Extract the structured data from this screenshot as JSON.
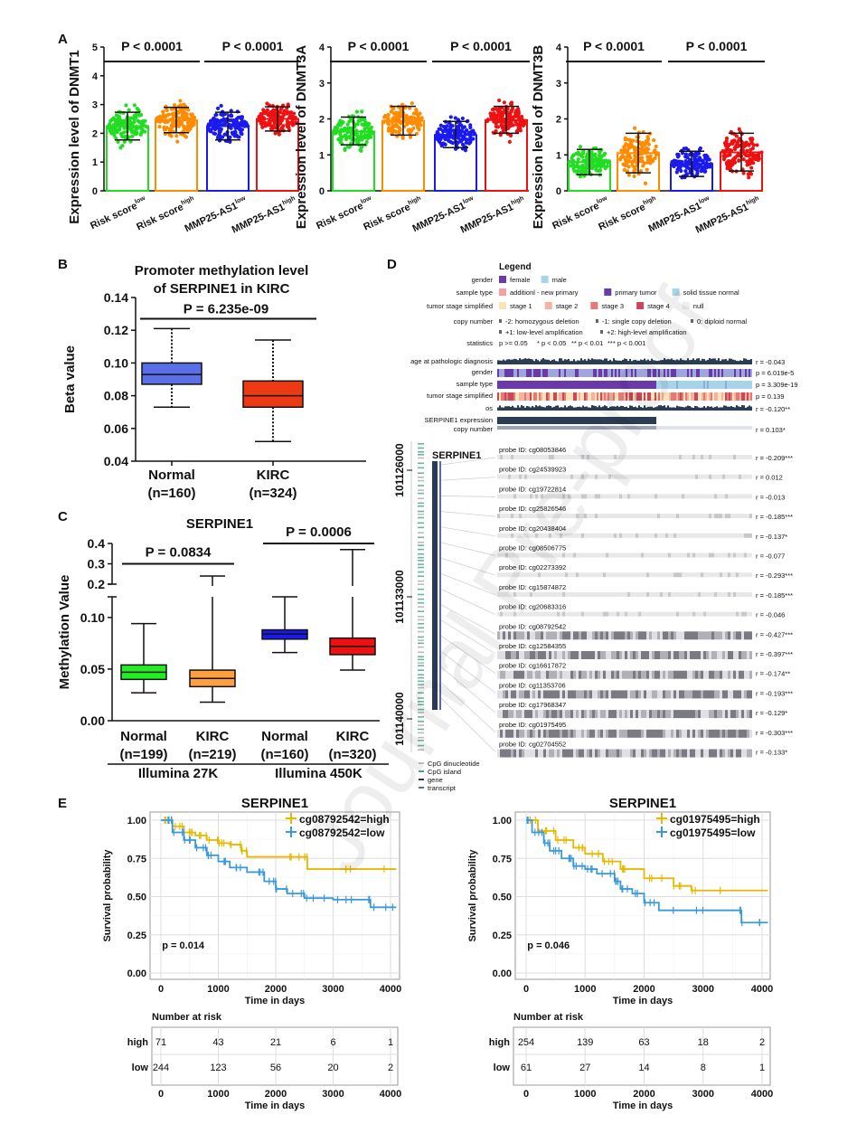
{
  "watermark": "Journal Pre-proof",
  "panel_labels": {
    "a": "A",
    "b": "B",
    "c": "C",
    "d": "D",
    "e": "E"
  },
  "chart_data": [
    {
      "panel": "A",
      "type": "bar",
      "ylabel": "Expression level of DNMT1",
      "ylim": [
        0,
        5
      ],
      "yticks": [
        "0",
        "1",
        "2",
        "3",
        "4",
        "5"
      ],
      "categories": [
        "Risk score",
        "Risk score",
        "MMP25-AS1",
        "MMP25-AS1"
      ],
      "category_superscripts": [
        "low",
        "high",
        "low",
        "high"
      ],
      "values": [
        2.25,
        2.45,
        2.25,
        2.5
      ],
      "error": [
        [
          1.77,
          2.73
        ],
        [
          2.02,
          2.9
        ],
        [
          1.77,
          2.73
        ],
        [
          2.08,
          2.92
        ]
      ],
      "colors": [
        "#22dd22",
        "#ff8c00",
        "#1a1aee",
        "#ee1111"
      ],
      "comparisons": [
        {
          "label": "P < 0.0001",
          "from": 0,
          "to": 1
        },
        {
          "label": "P < 0.0001",
          "from": 2,
          "to": 3
        }
      ]
    },
    {
      "panel": "A",
      "type": "bar",
      "ylabel": "Expression level of DNMT3A",
      "ylim": [
        0,
        4
      ],
      "yticks": [
        "0",
        "1",
        "2",
        "3",
        "4"
      ],
      "categories": [
        "Risk score",
        "Risk score",
        "MMP25-AS1",
        "MMP25-AS1"
      ],
      "category_superscripts": [
        "low",
        "high",
        "low",
        "high"
      ],
      "values": [
        1.65,
        1.95,
        1.55,
        1.97
      ],
      "error": [
        [
          1.28,
          2.05
        ],
        [
          1.55,
          2.35
        ],
        [
          1.2,
          1.93
        ],
        [
          1.6,
          2.35
        ]
      ],
      "colors": [
        "#22dd22",
        "#ff8c00",
        "#1a1aee",
        "#ee1111"
      ],
      "comparisons": [
        {
          "label": "P < 0.0001",
          "from": 0,
          "to": 1
        },
        {
          "label": "P < 0.0001",
          "from": 2,
          "to": 3
        }
      ]
    },
    {
      "panel": "A",
      "type": "bar",
      "ylabel": "Expression level of DNMT3B",
      "ylim": [
        0,
        4
      ],
      "yticks": [
        "0",
        "1",
        "2",
        "3",
        "4"
      ],
      "categories": [
        "Risk score",
        "Risk score",
        "MMP25-AS1",
        "MMP25-AS1"
      ],
      "category_superscripts": [
        "low",
        "high",
        "low",
        "high"
      ],
      "values": [
        0.8,
        1.05,
        0.75,
        1.07
      ],
      "error": [
        [
          0.45,
          1.15
        ],
        [
          0.5,
          1.6
        ],
        [
          0.4,
          1.1
        ],
        [
          0.55,
          1.6
        ]
      ],
      "colors": [
        "#22dd22",
        "#ff8c00",
        "#1a1aee",
        "#ee1111"
      ],
      "comparisons": [
        {
          "label": "P < 0.0001",
          "from": 0,
          "to": 1
        },
        {
          "label": "P < 0.0001",
          "from": 2,
          "to": 3
        }
      ]
    },
    {
      "panel": "B",
      "type": "box",
      "title": [
        "Promoter methylation level",
        "of SERPINE1 in KIRC"
      ],
      "ylabel": "Beta value",
      "ylim": [
        0.04,
        0.14
      ],
      "yticks": [
        "0.04",
        "0.06",
        "0.08",
        "0.10",
        "0.12",
        "0.14"
      ],
      "categories": [
        "Normal",
        "KIRC"
      ],
      "category_n": [
        "(n=160)",
        "(n=324)"
      ],
      "boxes": [
        {
          "min": 0.073,
          "q1": 0.087,
          "median": 0.093,
          "q3": 0.1,
          "max": 0.121
        },
        {
          "min": 0.052,
          "q1": 0.073,
          "median": 0.08,
          "q3": 0.089,
          "max": 0.114
        }
      ],
      "colors": [
        "#5b6fe6",
        "#ee3a14"
      ],
      "comparison": {
        "label": "P = 6.235e-09",
        "y": 0.127
      }
    },
    {
      "panel": "C",
      "type": "box",
      "title": "SERPINE1",
      "ylabel": "Methylation Value",
      "ylim_lower": [
        0,
        0.12
      ],
      "yticks_lower": [
        "0.00",
        "0.05",
        "0.10"
      ],
      "ylim_upper": [
        0.2,
        0.4
      ],
      "yticks_upper": [
        "0.2",
        "0.3",
        "0.4"
      ],
      "categories": [
        "Normal",
        "KIRC",
        "Normal",
        "KIRC"
      ],
      "category_n": [
        "(n=199)",
        "(n=219)",
        "(n=160)",
        "(n=320)"
      ],
      "groups": [
        {
          "label": "Illumina 27K",
          "from": 0,
          "to": 1
        },
        {
          "label": "Illumina 450K",
          "from": 2,
          "to": 3
        }
      ],
      "boxes": [
        {
          "min": 0.027,
          "q1": 0.04,
          "median": 0.047,
          "q3": 0.054,
          "max": 0.094
        },
        {
          "min": 0.018,
          "q1": 0.033,
          "median": 0.041,
          "q3": 0.049,
          "max": 0.24
        },
        {
          "min": 0.066,
          "q1": 0.079,
          "median": 0.084,
          "q3": 0.088,
          "max": 0.12
        },
        {
          "min": 0.049,
          "q1": 0.064,
          "median": 0.072,
          "q3": 0.08,
          "max": 0.37
        }
      ],
      "colors": [
        "#22ee22",
        "#ffa040",
        "#1a1aee",
        "#ee1111"
      ],
      "comparisons": [
        {
          "label": "P = 0.0834",
          "from": 0,
          "to": 1,
          "y": 0.3
        },
        {
          "label": "P = 0.0006",
          "from": 2,
          "to": 3,
          "y": 0.4
        }
      ]
    },
    {
      "panel": "E",
      "type": "line",
      "title": "SERPINE1",
      "xlabel": "Time in days",
      "ylabel": "Survival probability",
      "xlim": [
        0,
        4000
      ],
      "xticks": [
        "0",
        "1000",
        "2000",
        "3000",
        "4000"
      ],
      "ylim": [
        0,
        1
      ],
      "yticks": [
        "0.00",
        "0.25",
        "0.50",
        "0.75",
        "1.00"
      ],
      "grid": true,
      "legend": "top-right",
      "pvalue": "p = 0.014",
      "series": [
        {
          "name": "cg08792542=high",
          "color": "#e6b800",
          "x": [
            0,
            200,
            400,
            600,
            800,
            1000,
            1200,
            1400,
            1500,
            2500,
            2550,
            4100
          ],
          "y": [
            1,
            0.96,
            0.92,
            0.9,
            0.87,
            0.85,
            0.84,
            0.8,
            0.76,
            0.76,
            0.68,
            0.68
          ]
        },
        {
          "name": "cg08792542=low",
          "color": "#3a9ad9",
          "x": [
            0,
            200,
            400,
            600,
            800,
            1000,
            1200,
            1500,
            1800,
            2000,
            2200,
            2500,
            3000,
            3600,
            3650,
            4100
          ],
          "y": [
            1,
            0.92,
            0.87,
            0.82,
            0.77,
            0.73,
            0.69,
            0.66,
            0.6,
            0.55,
            0.52,
            0.49,
            0.48,
            0.48,
            0.43,
            0.43
          ]
        }
      ],
      "risk_table": {
        "title": "Number at risk",
        "xlabel": "Time in days",
        "rows": [
          {
            "label": "high",
            "values": [
              "71",
              "43",
              "21",
              "6",
              "1"
            ]
          },
          {
            "label": "low",
            "values": [
              "244",
              "123",
              "56",
              "20",
              "2"
            ]
          }
        ]
      }
    },
    {
      "panel": "E",
      "type": "line",
      "title": "SERPINE1",
      "xlabel": "Time in days",
      "ylabel": "Survival probability",
      "xlim": [
        0,
        4000
      ],
      "xticks": [
        "0",
        "1000",
        "2000",
        "3000",
        "4000"
      ],
      "ylim": [
        0,
        1
      ],
      "yticks": [
        "0.00",
        "0.25",
        "0.50",
        "0.75",
        "1.00"
      ],
      "grid": true,
      "legend": "top-right",
      "pvalue": "p = 0.046",
      "series": [
        {
          "name": "cg01975495=high",
          "color": "#e6b800",
          "x": [
            0,
            200,
            500,
            800,
            1000,
            1300,
            1600,
            2000,
            2500,
            2800,
            4100
          ],
          "y": [
            1,
            0.93,
            0.87,
            0.82,
            0.78,
            0.73,
            0.68,
            0.62,
            0.57,
            0.54,
            0.54
          ]
        },
        {
          "name": "cg01975495=low",
          "color": "#3a9ad9",
          "x": [
            0,
            100,
            300,
            400,
            600,
            800,
            1000,
            1200,
            1500,
            1600,
            1800,
            2000,
            2250,
            3600,
            3650,
            4100
          ],
          "y": [
            1,
            0.92,
            0.85,
            0.8,
            0.75,
            0.7,
            0.68,
            0.65,
            0.6,
            0.55,
            0.52,
            0.46,
            0.41,
            0.41,
            0.33,
            0.33
          ]
        }
      ],
      "risk_table": {
        "title": "Number at risk",
        "xlabel": "Time in days",
        "rows": [
          {
            "label": "high",
            "values": [
              "254",
              "139",
              "63",
              "18",
              "2"
            ]
          },
          {
            "label": "low",
            "values": [
              "61",
              "27",
              "14",
              "8",
              "1"
            ]
          }
        ]
      }
    }
  ],
  "panel_d": {
    "legend_title": "Legend",
    "legend": [
      {
        "label": "gender",
        "items": [
          {
            "text": "female",
            "color": "#6a3aa8"
          },
          {
            "text": "male",
            "color": "#a8d4ea"
          }
        ]
      },
      {
        "label": "sample type",
        "items": [
          {
            "text": "additionl - new primary",
            "color": "#f4a0a0"
          },
          {
            "text": "primary tumor",
            "color": "#6a3aa8"
          },
          {
            "text": "solid tissue normal",
            "color": "#a8d4ea"
          }
        ]
      },
      {
        "label": "tumor stage simplified",
        "items": [
          {
            "text": "stage 1",
            "color": "#fbe3b8"
          },
          {
            "text": "stage 2",
            "color": "#f4b3a0"
          },
          {
            "text": "stage 3",
            "color": "#e37a74"
          },
          {
            "text": "stage 4",
            "color": "#c8485e"
          },
          {
            "text": "null",
            "color": "#eeeeee"
          }
        ]
      }
    ],
    "copy_number_label": "copy number",
    "copy_number_items": [
      "-2: homozygous deletion",
      "-1: single copy deletion",
      "0: diploid normal",
      "+1: low-level amplification",
      "+2: high-level amplification"
    ],
    "statistics_label": "statistics",
    "statistics_items": [
      "p >= 0.05",
      "* p < 0.05",
      "** p < 0.01",
      "*** p < 0.001"
    ],
    "tracks": [
      {
        "label": "age at pathologic diagnosis",
        "stat": "r = -0.043",
        "significant": false,
        "kind": "bars"
      },
      {
        "label": "gender",
        "stat": "p = 6.019e-5",
        "significant": true,
        "kind": "gender"
      },
      {
        "label": "sample type",
        "stat": "p = 3.309e-19",
        "significant": true,
        "kind": "sample"
      },
      {
        "label": "tumor stage simplified",
        "stat": "p = 0.139",
        "significant": false,
        "kind": "stage"
      },
      {
        "label": "os",
        "stat": "r = -0.120**",
        "significant": true,
        "kind": "bars"
      },
      {
        "label": "SERPINE1 expression",
        "stat": "",
        "significant": true,
        "kind": "expr"
      },
      {
        "label": "copy number",
        "stat": "r = 0.103*",
        "significant": true,
        "kind": "cn"
      }
    ],
    "gene": "SERPINE1",
    "coordinates": [
      "101126000",
      "101133000",
      "101140000"
    ],
    "probe_prefix": "probe ID: ",
    "probes": [
      {
        "id": "cg08053846",
        "r": "r = -0.209***",
        "state": "sig"
      },
      {
        "id": "cg24539923",
        "r": "r = 0.012",
        "state": "ns"
      },
      {
        "id": "cg19722814",
        "r": "r = -0.013",
        "state": "ns"
      },
      {
        "id": "cg25826546",
        "r": "r = -0.185***",
        "state": "sig"
      },
      {
        "id": "cg20438404",
        "r": "r = -0.137*",
        "state": "sig"
      },
      {
        "id": "cg08506775",
        "r": "r = -0.077",
        "state": "ns"
      },
      {
        "id": "cg02273392",
        "r": "r = -0.293***",
        "state": "sig"
      },
      {
        "id": "cg15874872",
        "r": "r = -0.185***",
        "state": "sig"
      },
      {
        "id": "cg20683316",
        "r": "r = -0.046",
        "state": "ns"
      },
      {
        "id": "cg08792542",
        "r": "r = -0.427***",
        "state": "highlight"
      },
      {
        "id": "cg12584355",
        "r": "r = -0.397***",
        "state": "highlight"
      },
      {
        "id": "cg16617872",
        "r": "r = -0.174**",
        "state": "sig"
      },
      {
        "id": "cg11353706",
        "r": "r = -0.193***",
        "state": "sig"
      },
      {
        "id": "cg17968347",
        "r": "r = -0.129*",
        "state": "sig"
      },
      {
        "id": "cg01975495",
        "r": "r = -0.303***",
        "state": "highlight"
      },
      {
        "id": "cg02704552",
        "r": "r = -0.133*",
        "state": "sig"
      }
    ],
    "bottom_legend": [
      {
        "text": "CpG dinucleotide",
        "color": "#bbbbbb"
      },
      {
        "text": "CpG island",
        "color": "#4aa38a"
      },
      {
        "text": "gene",
        "color": "#2a3a55"
      },
      {
        "text": "transcript",
        "color": "#5a6aa0"
      }
    ]
  }
}
